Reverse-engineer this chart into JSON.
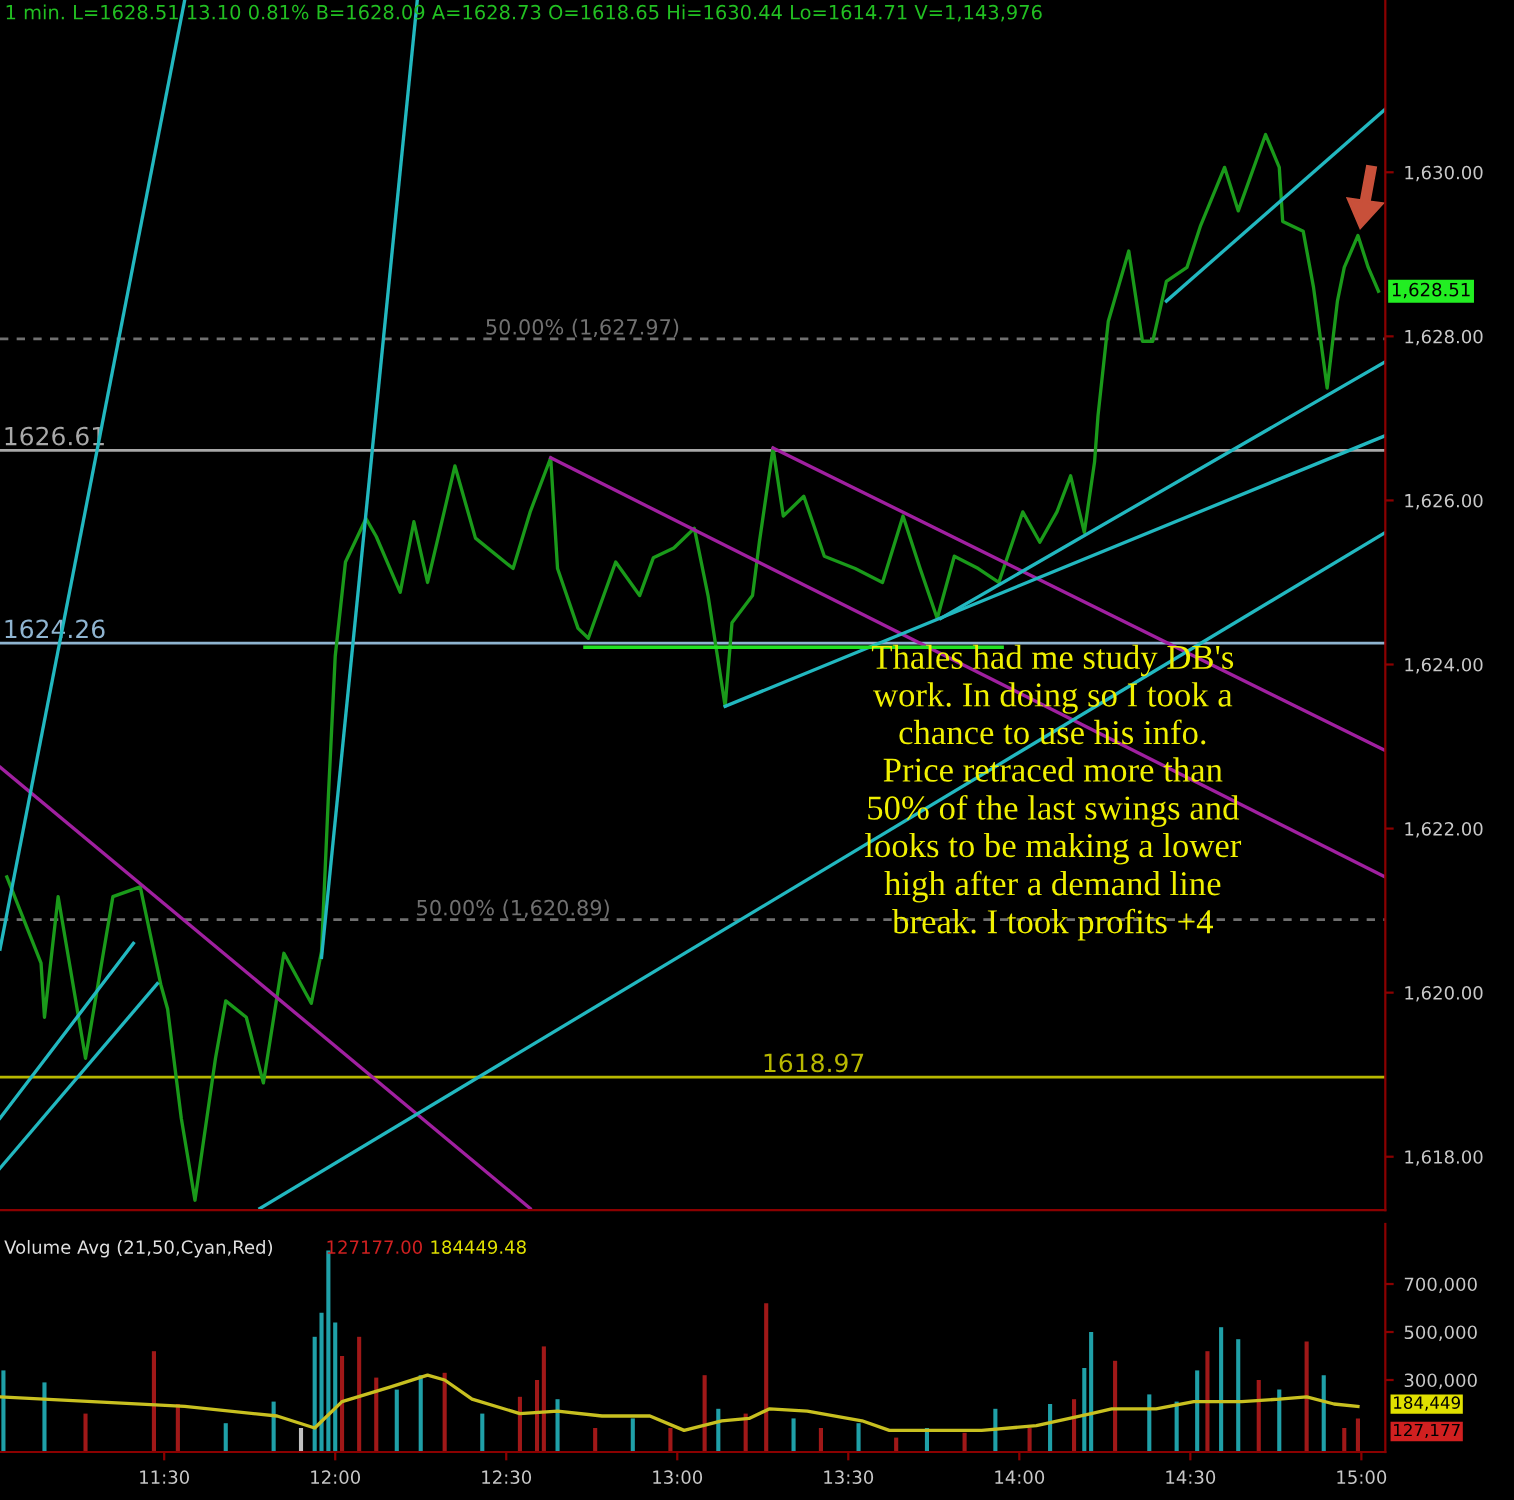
{
  "chart_data": [
    {
      "type": "line",
      "title": "1 min. L=1628.51 13.10 0.81% B=1628.09 A=1628.73 O=1618.65 Hi=1630.44 Lo=1614.71 V=1,143,976",
      "xlim": [
        11.02,
        15.07
      ],
      "ylim": [
        1617.35,
        1632.1
      ],
      "yticks": [
        {
          "value": 1618,
          "label": "1,618.00"
        },
        {
          "value": 1620,
          "label": "1,620.00"
        },
        {
          "value": 1622,
          "label": "1,622.00"
        },
        {
          "value": 1624,
          "label": "1,624.00"
        },
        {
          "value": 1626,
          "label": "1,626.00"
        },
        {
          "value": 1628,
          "label": "1,628.00"
        },
        {
          "value": 1630,
          "label": "1,630.00"
        }
      ],
      "tick_labels": "y",
      "grid": false,
      "legend": false,
      "series": [
        {
          "color": "#1a9a1a",
          "x": [
            11.04,
            11.14,
            11.15,
            11.19,
            11.27,
            11.35,
            11.43,
            11.49,
            11.51,
            11.55,
            11.59,
            11.65,
            11.68,
            11.74,
            11.79,
            11.85,
            11.93,
            11.96,
            11.98,
            12.0,
            12.03,
            12.09,
            12.12,
            12.19,
            12.23,
            12.27,
            12.35,
            12.41,
            12.52,
            12.57,
            12.63,
            12.65,
            12.71,
            12.74,
            12.82,
            12.89,
            12.93,
            12.99,
            13.05,
            13.09,
            13.14,
            13.16,
            13.22,
            13.24,
            13.28,
            13.31,
            13.37,
            13.43,
            13.52,
            13.6,
            13.66,
            13.71,
            13.76,
            13.81,
            13.88,
            13.94,
            14.01,
            14.06,
            14.11,
            14.15,
            14.19,
            14.22,
            14.23,
            14.26,
            14.32,
            14.36,
            14.39,
            14.43,
            14.49,
            14.53,
            14.6,
            14.64,
            14.72,
            14.76,
            14.77,
            14.83,
            14.86,
            14.9,
            14.93,
            14.95,
            14.99,
            15.02,
            15.05
          ],
          "values": [
            1621.41,
            1620.36,
            1619.7,
            1621.17,
            1619.2,
            1621.17,
            1621.29,
            1620.1,
            1619.8,
            1618.47,
            1617.47,
            1619.2,
            1619.9,
            1619.7,
            1618.9,
            1620.48,
            1619.87,
            1620.5,
            1622.39,
            1624.1,
            1625.25,
            1625.78,
            1625.56,
            1624.88,
            1625.74,
            1625.0,
            1626.42,
            1625.54,
            1625.17,
            1625.86,
            1626.52,
            1625.17,
            1624.44,
            1624.32,
            1625.25,
            1624.84,
            1625.3,
            1625.42,
            1625.66,
            1624.84,
            1623.49,
            1624.51,
            1624.84,
            1625.49,
            1626.64,
            1625.81,
            1626.05,
            1625.32,
            1625.17,
            1625.0,
            1625.81,
            1625.17,
            1624.56,
            1625.32,
            1625.17,
            1625.0,
            1625.86,
            1625.49,
            1625.86,
            1626.3,
            1625.61,
            1626.47,
            1627.03,
            1628.18,
            1629.04,
            1627.94,
            1627.94,
            1628.67,
            1628.84,
            1629.35,
            1630.06,
            1629.53,
            1630.46,
            1630.06,
            1629.4,
            1629.28,
            1628.6,
            1627.37,
            1628.43,
            1628.84,
            1629.23,
            1628.84,
            1628.55
          ]
        },
        {
          "color": "#a020a0",
          "x": [
            12.63,
            15.07
          ],
          "values": [
            1626.52,
            1621.41
          ]
        },
        {
          "color": "#a020a0",
          "x": [
            13.28,
            15.07
          ],
          "values": [
            1626.64,
            1622.95
          ]
        },
        {
          "color": "#a020a0",
          "x": [
            11.02,
            12.57
          ],
          "values": [
            1622.75,
            1617.37
          ]
        },
        {
          "color": "#22b8c0",
          "x": [
            11.02,
            11.56
          ],
          "values": [
            1620.53,
            1632.1
          ]
        },
        {
          "color": "#22b8c0",
          "x": [
            11.96,
            12.24
          ],
          "values": [
            1620.43,
            1632.1
          ]
        },
        {
          "color": "#22b8c0",
          "x": [
            11.02,
            11.41
          ],
          "values": [
            1618.47,
            1620.6
          ]
        },
        {
          "color": "#22b8c0",
          "x": [
            11.02,
            11.48
          ],
          "values": [
            1617.86,
            1620.11
          ]
        },
        {
          "color": "#22b8c0",
          "x": [
            11.78,
            15.07
          ],
          "values": [
            1617.37,
            1625.61
          ]
        },
        {
          "color": "#22b8c0",
          "x": [
            13.14,
            15.07
          ],
          "values": [
            1623.49,
            1626.79
          ]
        },
        {
          "color": "#22b8c0",
          "x": [
            13.77,
            15.07
          ],
          "values": [
            1624.56,
            1627.69
          ]
        },
        {
          "color": "#22b8c0",
          "x": [
            14.43,
            15.07
          ],
          "values": [
            1628.43,
            1630.77
          ]
        },
        {
          "color": "#22e022",
          "x": [
            12.73,
            13.95
          ],
          "values": [
            1624.21,
            1624.21
          ]
        }
      ],
      "ref_lines": [
        {
          "axis": "y",
          "value": 1626.61,
          "label": "1626.61",
          "color": "#a8a8a8"
        },
        {
          "axis": "y",
          "value": 1624.26,
          "label": "1624.26",
          "color": "#8fb4d0"
        },
        {
          "axis": "y",
          "value": 1618.97,
          "label": "1618.97",
          "color": "#b8b800"
        },
        {
          "axis": "y",
          "value": 1620.89,
          "label": "50.00% (1,620.89)",
          "color": "#707070",
          "line_style": "dashed"
        },
        {
          "axis": "y",
          "value": 1627.97,
          "label": "50.00% (1,627.97)",
          "color": "#707070",
          "line_style": "dashed"
        }
      ],
      "annotations": [
        "Thales had me study DB's\nwork. In doing so I took a\nchance to use his info.\nPrice retraced more than\n50% of the last swings and\nlooks to be making a lower\nhigh after a demand line\nbreak. I took profits +4",
        "1,628.51"
      ]
    },
    {
      "type": "bar",
      "title": "Volume Avg (21,50,Cyan,Red)",
      "xlim": [
        11.02,
        15.07
      ],
      "ylim": [
        0,
        950000
      ],
      "xticks": [
        {
          "value": 11.5,
          "label": "11:30"
        },
        {
          "value": 12.0,
          "label": "12:00"
        },
        {
          "value": 12.5,
          "label": "12:30"
        },
        {
          "value": 13.0,
          "label": "13:00"
        },
        {
          "value": 13.5,
          "label": "13:30"
        },
        {
          "value": 14.0,
          "label": "14:00"
        },
        {
          "value": 14.5,
          "label": "14:30"
        },
        {
          "value": 15.0,
          "label": "15:00"
        }
      ],
      "yticks": [
        {
          "value": 300000,
          "label": "300,000"
        },
        {
          "value": 500000,
          "label": "500,000"
        },
        {
          "value": 700000,
          "label": "700,000"
        }
      ],
      "grid": false,
      "legend": false,
      "series": [
        {
          "type": "bar",
          "x": [
            11.03,
            11.15,
            11.27,
            11.47,
            11.54,
            11.68,
            11.82,
            11.9,
            11.94,
            11.96,
            11.98,
            12.0,
            12.02,
            12.07,
            12.12,
            12.18,
            12.25,
            12.32,
            12.43,
            12.54,
            12.59,
            12.61,
            12.65,
            12.76,
            12.87,
            12.98,
            13.08,
            13.12,
            13.2,
            13.26,
            13.34,
            13.42,
            13.53,
            13.64,
            13.73,
            13.84,
            13.93,
            14.03,
            14.09,
            14.16,
            14.19,
            14.21,
            14.28,
            14.38,
            14.46,
            14.52,
            14.55,
            14.59,
            14.64,
            14.7,
            14.76,
            14.84,
            14.89,
            14.95,
            14.99
          ],
          "values": [
            340000,
            290000,
            160000,
            420000,
            200000,
            120000,
            210000,
            100000,
            480000,
            580000,
            840000,
            540000,
            400000,
            480000,
            310000,
            260000,
            320000,
            330000,
            160000,
            230000,
            300000,
            440000,
            220000,
            100000,
            140000,
            100000,
            320000,
            180000,
            160000,
            620000,
            140000,
            100000,
            120000,
            60000,
            100000,
            80000,
            180000,
            100000,
            200000,
            220000,
            350000,
            500000,
            380000,
            240000,
            210000,
            340000,
            420000,
            520000,
            470000,
            300000,
            260000,
            460000,
            320000,
            100000,
            140000
          ],
          "colors": [
            "#1fa0a8",
            "#1fa0a8",
            "#a01818",
            "#a01818",
            "#a01818",
            "#1fa0a8",
            "#1fa0a8",
            "#c0c0c0",
            "#1fa0a8",
            "#1fa0a8",
            "#1fa0a8",
            "#1fa0a8",
            "#a01818",
            "#a01818",
            "#a01818",
            "#1fa0a8",
            "#1fa0a8",
            "#a01818",
            "#1fa0a8",
            "#a01818",
            "#a01818",
            "#a01818",
            "#1fa0a8",
            "#a01818",
            "#1fa0a8",
            "#a01818",
            "#a01818",
            "#1fa0a8",
            "#a01818",
            "#a01818",
            "#1fa0a8",
            "#a01818",
            "#1fa0a8",
            "#a01818",
            "#1fa0a8",
            "#a01818",
            "#1fa0a8",
            "#a01818",
            "#1fa0a8",
            "#a01818",
            "#1fa0a8",
            "#1fa0a8",
            "#a01818",
            "#1fa0a8",
            "#1fa0a8",
            "#1fa0a8",
            "#a01818",
            "#1fa0a8",
            "#1fa0a8",
            "#a01818",
            "#1fa0a8",
            "#a01818",
            "#1fa0a8",
            "#a01818",
            "#a01818"
          ]
        },
        {
          "type": "line",
          "color": "#c8c020",
          "x": [
            11.02,
            11.29,
            11.56,
            11.83,
            11.94,
            12.02,
            12.16,
            12.27,
            12.32,
            12.4,
            12.54,
            12.65,
            12.78,
            12.92,
            13.02,
            13.13,
            13.21,
            13.27,
            13.38,
            13.54,
            13.62,
            13.73,
            13.89,
            14.05,
            14.21,
            14.27,
            14.4,
            14.51,
            14.65,
            14.76,
            14.84,
            14.92,
            14.99
          ],
          "values": [
            230000,
            210000,
            190000,
            150000,
            100000,
            210000,
            270000,
            320000,
            300000,
            220000,
            160000,
            170000,
            150000,
            150000,
            90000,
            130000,
            140000,
            180000,
            170000,
            130000,
            90000,
            90000,
            90000,
            110000,
            160000,
            180000,
            180000,
            210000,
            210000,
            220000,
            230000,
            200000,
            190000
          ]
        }
      ],
      "annotations": [
        "127177.00",
        "184449.48",
        "184,449",
        "127,177"
      ]
    }
  ]
}
